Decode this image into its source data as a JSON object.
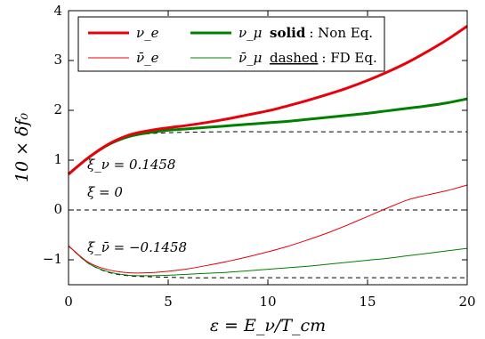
{
  "chart_data": {
    "type": "line",
    "xlabel": "ε = E_ν/T_cm",
    "ylabel": "10 × δf₀",
    "xlim": [
      0,
      20
    ],
    "ylim": [
      -1.5,
      4
    ],
    "xticks": [
      "0",
      "5",
      "10",
      "15",
      "20"
    ],
    "yticks": [
      "−1",
      "0",
      "1",
      "2",
      "3",
      "4"
    ],
    "legend_labels": {
      "nu_e": "ν_e",
      "nu_mu": "ν_μ",
      "nubar_e": "ν̄_e",
      "nubar_mu": "ν̄_μ",
      "solid_key": "solid",
      "solid_text": ": Non Eq.",
      "dashed_key": "dashed",
      "dashed_text": ": FD Eq."
    },
    "annotations": {
      "xi_nu": "ξ_ν = 0.1458",
      "xi_zero": "ξ = 0",
      "xi_nubar": "ξ_ν̄ = −0.1458"
    },
    "series": [
      {
        "name": "ν_e",
        "color": "#e8000b",
        "width": "thick",
        "style": "solid",
        "x": [
          0,
          1,
          2,
          3,
          4,
          5,
          6,
          7,
          8,
          9,
          10,
          11,
          12,
          13,
          14,
          15,
          16,
          17,
          18,
          19,
          20
        ],
        "y": [
          0.72,
          1.05,
          1.32,
          1.5,
          1.59,
          1.65,
          1.7,
          1.76,
          1.83,
          1.91,
          1.99,
          2.09,
          2.2,
          2.32,
          2.45,
          2.6,
          2.77,
          2.96,
          3.18,
          3.42,
          3.69
        ]
      },
      {
        "name": "ν_μ",
        "color": "#008000",
        "width": "thick",
        "style": "solid",
        "x": [
          0,
          1,
          2,
          3,
          4,
          5,
          6,
          7,
          8,
          9,
          10,
          11,
          12,
          13,
          14,
          15,
          16,
          17,
          18,
          19,
          20
        ],
        "y": [
          0.72,
          1.05,
          1.31,
          1.47,
          1.55,
          1.6,
          1.63,
          1.66,
          1.69,
          1.72,
          1.75,
          1.78,
          1.82,
          1.86,
          1.9,
          1.94,
          1.99,
          2.04,
          2.09,
          2.15,
          2.23
        ]
      },
      {
        "name": "ν̄_e",
        "color": "#e8000b",
        "width": "thin",
        "style": "solid",
        "x": [
          0,
          1,
          2,
          3,
          4,
          5,
          6,
          7,
          8,
          9,
          10,
          11,
          12,
          13,
          14,
          15,
          16,
          17,
          18,
          19,
          20
        ],
        "y": [
          -0.72,
          -1.05,
          -1.2,
          -1.26,
          -1.26,
          -1.23,
          -1.18,
          -1.11,
          -1.03,
          -0.94,
          -0.84,
          -0.73,
          -0.6,
          -0.46,
          -0.3,
          -0.13,
          0.04,
          0.2,
          0.3,
          0.39,
          0.5
        ]
      },
      {
        "name": "ν̄_μ",
        "color": "#008000",
        "width": "thin",
        "style": "solid",
        "x": [
          0,
          1,
          2,
          3,
          4,
          5,
          6,
          7,
          8,
          9,
          10,
          11,
          12,
          13,
          14,
          15,
          16,
          17,
          18,
          19,
          20
        ],
        "y": [
          -0.72,
          -1.07,
          -1.24,
          -1.31,
          -1.32,
          -1.31,
          -1.29,
          -1.27,
          -1.25,
          -1.22,
          -1.19,
          -1.16,
          -1.13,
          -1.09,
          -1.05,
          -1.01,
          -0.97,
          -0.92,
          -0.87,
          -0.82,
          -0.77
        ]
      },
      {
        "name": "FD ξ_ν = 0.1458",
        "color": "#000000",
        "width": "thin",
        "style": "dashed",
        "x": [
          0,
          1,
          2,
          3,
          4,
          5,
          6,
          8,
          10,
          12,
          14,
          16,
          18,
          20
        ],
        "y": [
          0.72,
          1.05,
          1.32,
          1.47,
          1.53,
          1.55,
          1.56,
          1.57,
          1.57,
          1.57,
          1.57,
          1.57,
          1.57,
          1.57
        ]
      },
      {
        "name": "FD ξ = 0",
        "color": "#000000",
        "width": "thin",
        "style": "dashed",
        "x": [
          0,
          20
        ],
        "y": [
          0,
          0
        ]
      },
      {
        "name": "FD ξ_ν̄ = −0.1458",
        "color": "#000000",
        "width": "thin",
        "style": "dashed",
        "x": [
          0,
          1,
          2,
          3,
          4,
          5,
          6,
          8,
          10,
          12,
          14,
          16,
          18,
          20
        ],
        "y": [
          -0.72,
          -1.07,
          -1.25,
          -1.32,
          -1.34,
          -1.35,
          -1.36,
          -1.36,
          -1.36,
          -1.36,
          -1.36,
          -1.36,
          -1.36,
          -1.36
        ]
      }
    ]
  }
}
